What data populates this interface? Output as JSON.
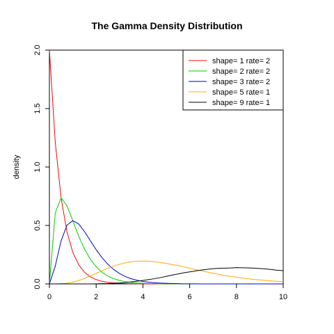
{
  "chart_data": {
    "type": "line",
    "title": "The Gamma Density Distribution",
    "xlabel": "",
    "ylabel": "density",
    "xlim": [
      0,
      10
    ],
    "ylim": [
      0,
      2
    ],
    "grid": false,
    "legend_position": "top-right",
    "x_ticks": [
      0,
      2,
      4,
      6,
      8,
      10
    ],
    "y_ticks": [
      0.0,
      0.5,
      1.0,
      1.5,
      2.0
    ],
    "x_tick_labels": [
      "0",
      "2",
      "4",
      "6",
      "8",
      "10"
    ],
    "y_tick_labels": [
      "0.0",
      "0.5",
      "1.0",
      "1.5",
      "2.0"
    ],
    "x": [
      0,
      0.25,
      0.5,
      0.75,
      1,
      1.25,
      1.5,
      1.75,
      2,
      2.25,
      2.5,
      2.75,
      3,
      3.25,
      3.5,
      3.75,
      4,
      4.25,
      4.5,
      4.75,
      5,
      5.25,
      5.5,
      5.75,
      6,
      6.25,
      6.5,
      6.75,
      7,
      7.25,
      7.5,
      7.75,
      8,
      8.25,
      8.5,
      8.75,
      9,
      9.25,
      9.5,
      9.75,
      10
    ],
    "series": [
      {
        "name": "shape= 1  rate= 2",
        "color": "#ff0000",
        "values": [
          2.0,
          1.213,
          0.736,
          0.446,
          0.271,
          0.164,
          0.1,
          0.06,
          0.037,
          0.022,
          0.013,
          0.008,
          0.005,
          0.003,
          0.002,
          0.001,
          0.001,
          0.0,
          0.0,
          0.0,
          0.0,
          0.0,
          0.0,
          0.0,
          0.0,
          0.0,
          0.0,
          0.0,
          0.0,
          0.0,
          0.0,
          0.0,
          0.0,
          0.0,
          0.0,
          0.0,
          0.0,
          0.0,
          0.0,
          0.0,
          0.0
        ]
      },
      {
        "name": "shape= 2  rate= 2",
        "color": "#00cc00",
        "values": [
          0.0,
          0.607,
          0.736,
          0.669,
          0.541,
          0.41,
          0.299,
          0.211,
          0.147,
          0.1,
          0.067,
          0.045,
          0.03,
          0.019,
          0.013,
          0.008,
          0.005,
          0.003,
          0.002,
          0.001,
          0.001,
          0.001,
          0.0,
          0.0,
          0.0,
          0.0,
          0.0,
          0.0,
          0.0,
          0.0,
          0.0,
          0.0,
          0.0,
          0.0,
          0.0,
          0.0,
          0.0,
          0.0,
          0.0,
          0.0,
          0.0
        ]
      },
      {
        "name": "shape= 3  rate= 2",
        "color": "#0000cc",
        "values": [
          0.0,
          0.152,
          0.368,
          0.502,
          0.541,
          0.513,
          0.448,
          0.37,
          0.293,
          0.225,
          0.168,
          0.123,
          0.089,
          0.063,
          0.044,
          0.031,
          0.021,
          0.015,
          0.01,
          0.007,
          0.005,
          0.003,
          0.002,
          0.001,
          0.001,
          0.001,
          0.0,
          0.0,
          0.0,
          0.0,
          0.0,
          0.0,
          0.0,
          0.0,
          0.0,
          0.0,
          0.0,
          0.0,
          0.0,
          0.0,
          0.0
        ]
      },
      {
        "name": "shape= 5  rate= 1",
        "color": "#ffaa00",
        "values": [
          0.0,
          0.0,
          0.002,
          0.006,
          0.015,
          0.029,
          0.047,
          0.069,
          0.09,
          0.112,
          0.134,
          0.152,
          0.168,
          0.18,
          0.189,
          0.194,
          0.195,
          0.194,
          0.19,
          0.183,
          0.175,
          0.166,
          0.157,
          0.146,
          0.134,
          0.123,
          0.112,
          0.101,
          0.091,
          0.081,
          0.072,
          0.064,
          0.057,
          0.05,
          0.044,
          0.038,
          0.034,
          0.029,
          0.025,
          0.022,
          0.019
        ]
      },
      {
        "name": "shape= 9  rate= 1",
        "color": "#000000",
        "values": [
          0.0,
          0.0,
          0.0,
          0.0,
          0.0,
          0.0,
          0.0,
          0.0,
          0.001,
          0.002,
          0.003,
          0.006,
          0.008,
          0.012,
          0.017,
          0.023,
          0.03,
          0.037,
          0.045,
          0.054,
          0.065,
          0.075,
          0.085,
          0.095,
          0.103,
          0.111,
          0.118,
          0.124,
          0.13,
          0.134,
          0.135,
          0.136,
          0.139,
          0.138,
          0.137,
          0.135,
          0.132,
          0.128,
          0.123,
          0.117,
          0.113
        ]
      }
    ]
  }
}
